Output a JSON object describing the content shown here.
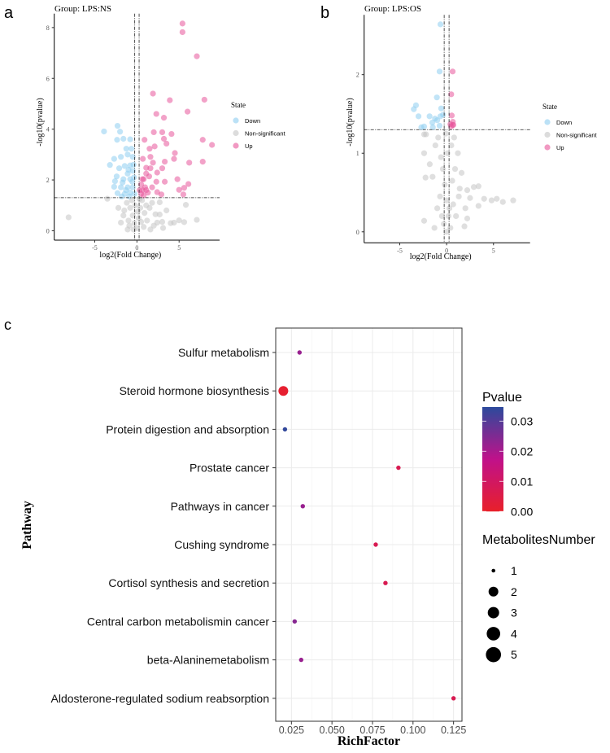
{
  "chart_data": [
    {
      "type": "scatter",
      "panel_label": "a",
      "title": "Group: LPS:NS",
      "xlabel": "log2(Fold Change)",
      "ylabel": "-log10(pvalue)",
      "xlim": [
        -9.8,
        9.8
      ],
      "ylim": [
        -0.37,
        8.55
      ],
      "xticks": [
        -5,
        0,
        5
      ],
      "yticks": [
        0,
        2,
        4,
        6,
        8
      ],
      "thresholds": {
        "x": [
          -0.26,
          0.26
        ],
        "y": 1.3
      },
      "legend": {
        "title": "State",
        "position": "right",
        "entries": [
          "Down",
          "Non-significant",
          "Up"
        ]
      },
      "colors": {
        "Down": "#8ecdf0",
        "Non-significant": "#c4c4c4",
        "Up": "#e8559a"
      },
      "series": [
        {
          "name": "Down",
          "points": [
            [
              -3.9,
              3.91
            ],
            [
              -2.3,
              4.13
            ],
            [
              -2.0,
              3.9
            ],
            [
              -2.35,
              3.58
            ],
            [
              -1.6,
              3.62
            ],
            [
              -0.8,
              3.6
            ],
            [
              -1.26,
              3.23
            ],
            [
              -0.65,
              3.23
            ],
            [
              -2.7,
              2.83
            ],
            [
              -3.2,
              2.59
            ],
            [
              -1.9,
              2.91
            ],
            [
              -1.1,
              3.0
            ],
            [
              -0.5,
              2.91
            ],
            [
              -2.1,
              2.46
            ],
            [
              -1.45,
              2.55
            ],
            [
              -0.8,
              2.57
            ],
            [
              -2.4,
              2.14
            ],
            [
              -1.1,
              2.25
            ],
            [
              -0.5,
              2.36
            ],
            [
              -2.6,
              1.95
            ],
            [
              -1.6,
              2.03
            ],
            [
              -0.8,
              2.03
            ],
            [
              -2.7,
              1.73
            ],
            [
              -1.9,
              1.71
            ],
            [
              -1.1,
              1.71
            ],
            [
              -0.5,
              1.71
            ],
            [
              -2.3,
              1.48
            ],
            [
              -1.45,
              1.45
            ],
            [
              -0.8,
              1.5
            ],
            [
              -0.3,
              1.45
            ],
            [
              -1.3,
              1.6
            ],
            [
              -0.55,
              1.93
            ],
            [
              -1.0,
              2.4
            ],
            [
              -0.4,
              2.6
            ],
            [
              -1.7,
              1.9
            ],
            [
              -0.35,
              2.1
            ],
            [
              -0.9,
              1.35
            ],
            [
              -1.8,
              1.35
            ]
          ]
        },
        {
          "name": "Non-significant",
          "points": [
            [
              -8.1,
              0.53
            ],
            [
              -3.5,
              1.26
            ],
            [
              5.8,
              1.02
            ],
            [
              7.1,
              0.43
            ],
            [
              2.7,
              1.12
            ],
            [
              2.7,
              0.64
            ],
            [
              4.4,
              0.32
            ],
            [
              5.0,
              0.41
            ],
            [
              5.6,
              0.34
            ],
            [
              3.1,
              0.11
            ],
            [
              2.4,
              0.32
            ],
            [
              -1.9,
              0.32
            ],
            [
              -1.1,
              0.05
            ],
            [
              -1.5,
              0.8
            ],
            [
              -1.2,
              1.1
            ],
            [
              -0.8,
              0.9
            ],
            [
              -0.5,
              0.6
            ],
            [
              -0.3,
              0.3
            ],
            [
              0,
              0.1
            ],
            [
              0.2,
              0.5
            ],
            [
              0.4,
              0.9
            ],
            [
              0.6,
              1.2
            ],
            [
              0.9,
              0.7
            ],
            [
              1.2,
              0.4
            ],
            [
              1.5,
              0.9
            ],
            [
              -0.6,
              1.2
            ],
            [
              -1.0,
              0.4
            ],
            [
              0.8,
              0.15
            ],
            [
              1.8,
              1.1
            ],
            [
              2.0,
              0.2
            ],
            [
              -0.2,
              1.0
            ],
            [
              0.1,
              0.75
            ],
            [
              -0.4,
              0.05
            ],
            [
              1.1,
              1.0
            ],
            [
              -2.2,
              0.9
            ],
            [
              3.5,
              0.8
            ],
            [
              1.6,
              0.05
            ],
            [
              2.2,
              0.65
            ],
            [
              -0.9,
              0.2
            ],
            [
              0.5,
              0.35
            ],
            [
              3.0,
              0.35
            ],
            [
              4.0,
              0.3
            ],
            [
              -1.6,
              0.6
            ],
            [
              0.3,
              1.25
            ]
          ]
        },
        {
          "name": "Up",
          "points": [
            [
              5.4,
              8.16
            ],
            [
              5.4,
              7.82
            ],
            [
              7.1,
              6.87
            ],
            [
              1.9,
              5.4
            ],
            [
              3.9,
              5.14
            ],
            [
              8.0,
              5.16
            ],
            [
              6.0,
              4.69
            ],
            [
              2.3,
              4.6
            ],
            [
              3.2,
              4.45
            ],
            [
              2.0,
              3.88
            ],
            [
              3.0,
              3.88
            ],
            [
              4.1,
              3.81
            ],
            [
              7.8,
              3.58
            ],
            [
              8.9,
              3.38
            ],
            [
              0.9,
              3.58
            ],
            [
              3.2,
              3.62
            ],
            [
              3.5,
              3.43
            ],
            [
              2.1,
              3.32
            ],
            [
              1.5,
              3.23
            ],
            [
              4.5,
              3.06
            ],
            [
              1.6,
              2.91
            ],
            [
              4.4,
              2.83
            ],
            [
              3.3,
              2.72
            ],
            [
              6.2,
              2.68
            ],
            [
              7.8,
              2.72
            ],
            [
              0.7,
              2.83
            ],
            [
              1.1,
              2.48
            ],
            [
              3.0,
              2.46
            ],
            [
              2.4,
              2.29
            ],
            [
              0.8,
              2.03
            ],
            [
              4.8,
              2.03
            ],
            [
              2.3,
              1.93
            ],
            [
              3.3,
              1.93
            ],
            [
              6.1,
              1.84
            ],
            [
              5.6,
              1.69
            ],
            [
              5.0,
              1.61
            ],
            [
              5.5,
              1.43
            ],
            [
              2.9,
              1.43
            ],
            [
              2.4,
              1.52
            ],
            [
              0.5,
              1.82
            ],
            [
              0.65,
              1.6
            ],
            [
              0.97,
              1.71
            ],
            [
              1.3,
              1.5
            ],
            [
              0.5,
              1.45
            ],
            [
              0.8,
              1.39
            ],
            [
              1.45,
              2.14
            ],
            [
              1.1,
              2.25
            ],
            [
              1.8,
              1.71
            ],
            [
              0.32,
              1.6
            ],
            [
              1.1,
              1.6
            ],
            [
              0.65,
              2.03
            ],
            [
              1.6,
              2.46
            ],
            [
              1.9,
              2.68
            ]
          ]
        }
      ]
    },
    {
      "type": "scatter",
      "panel_label": "b",
      "title": "Group: LPS:OS",
      "xlabel": "log2(Fold Change)",
      "ylabel": "-log10(pvalue)",
      "xlim": [
        -8.8,
        8.9
      ],
      "ylim": [
        -0.14,
        2.76
      ],
      "xticks": [
        -5,
        0,
        5
      ],
      "yticks": [
        0,
        1,
        2
      ],
      "thresholds": {
        "x": [
          -0.26,
          0.26
        ],
        "y": 1.3
      },
      "legend": {
        "title": "State",
        "position": "right",
        "entries": [
          "Down",
          "Non-significant",
          "Up"
        ]
      },
      "colors": {
        "Down": "#8ecdf0",
        "Non-significant": "#c4c4c4",
        "Up": "#e8559a"
      },
      "series": [
        {
          "name": "Down",
          "points": [
            [
              -0.66,
              2.64
            ],
            [
              -0.75,
              2.04
            ],
            [
              -1.04,
              1.71
            ],
            [
              -3.27,
              1.61
            ],
            [
              -3.5,
              1.56
            ],
            [
              -0.58,
              1.57
            ],
            [
              -3.0,
              1.47
            ],
            [
              -1.82,
              1.47
            ],
            [
              -1.24,
              1.44
            ],
            [
              -1.0,
              1.42
            ],
            [
              -1.53,
              1.39
            ],
            [
              -0.66,
              1.47
            ],
            [
              -0.38,
              1.49
            ],
            [
              -2.7,
              1.33
            ],
            [
              -2.4,
              1.34
            ],
            [
              -1.47,
              1.33
            ],
            [
              -0.75,
              1.35
            ]
          ]
        },
        {
          "name": "Non-significant",
          "points": [
            [
              7.1,
              0.4
            ],
            [
              6.0,
              0.38
            ],
            [
              5.35,
              0.42
            ],
            [
              4.8,
              0.4
            ],
            [
              4.0,
              0.42
            ],
            [
              3.4,
              0.58
            ],
            [
              2.9,
              0.57
            ],
            [
              2.2,
              0.53
            ],
            [
              2.5,
              0.43
            ],
            [
              3.4,
              0.33
            ],
            [
              2.2,
              0.17
            ],
            [
              1.9,
              0.07
            ],
            [
              -2.4,
              0.14
            ],
            [
              -2.25,
              0.69
            ],
            [
              -2.4,
              1.0
            ],
            [
              -2.4,
              1.24
            ],
            [
              -2.2,
              1.24
            ],
            [
              -1.5,
              0.7
            ],
            [
              -1.8,
              0.86
            ],
            [
              -1.2,
              1.1
            ],
            [
              -0.9,
              1.2
            ],
            [
              -0.6,
              0.95
            ],
            [
              -0.4,
              0.8
            ],
            [
              -0.2,
              0.6
            ],
            [
              0,
              0.4
            ],
            [
              0.2,
              0.2
            ],
            [
              0.4,
              0.05
            ],
            [
              -0.3,
              0.1
            ],
            [
              0.1,
              1.0
            ],
            [
              0.5,
              1.1
            ],
            [
              0.8,
              1.2
            ],
            [
              1.2,
              1.0
            ],
            [
              0.9,
              0.8
            ],
            [
              0.6,
              0.65
            ],
            [
              1.4,
              0.55
            ],
            [
              -0.7,
              0.45
            ],
            [
              -1.0,
              0.3
            ],
            [
              0.3,
              0.3
            ],
            [
              1.0,
              0.2
            ],
            [
              1.6,
              0.75
            ],
            [
              -0.1,
              1.25
            ],
            [
              0.7,
              0.35
            ],
            [
              -0.5,
              0.2
            ],
            [
              1.3,
              0.45
            ],
            [
              2.0,
              0.3
            ],
            [
              -1.3,
              0.05
            ],
            [
              0.0,
              0.0
            ]
          ]
        },
        {
          "name": "Up",
          "points": [
            [
              0.64,
              2.04
            ],
            [
              0.49,
              1.75
            ],
            [
              0.55,
              1.48
            ],
            [
              0.66,
              1.4
            ],
            [
              0.4,
              1.37
            ],
            [
              0.64,
              1.36
            ],
            [
              0.49,
              1.34
            ],
            [
              0.72,
              1.36
            ]
          ]
        }
      ]
    },
    {
      "type": "scatter",
      "subtype": "bubble",
      "panel_label": "c",
      "xlabel": "RichFactor",
      "ylabel": "Pathway",
      "xlim": [
        0.0153,
        0.1302
      ],
      "xticks": [
        "0.025",
        "0.050",
        "0.075",
        "0.100",
        "0.125"
      ],
      "grid": true,
      "categories": [
        "Sulfur metabolism",
        "Steroid hormone biosynthesis",
        "Protein digestion and absorption",
        "Prostate cancer",
        "Pathways in cancer",
        "Cushing syndrome",
        "Cortisol synthesis and secretion",
        "Central carbon metabolismin cancer",
        "beta-Alaninemetabolism",
        "Aldosterone-regulated sodium reabsorption"
      ],
      "rich_factor": [
        0.03,
        0.02,
        0.021,
        0.091,
        0.032,
        0.077,
        0.083,
        0.027,
        0.031,
        0.125
      ],
      "pvalue": [
        0.022,
        0.001,
        0.034,
        0.007,
        0.022,
        0.007,
        0.007,
        0.024,
        0.022,
        0.007
      ],
      "metabolites_number": [
        1,
        2,
        1,
        1,
        1,
        1,
        1,
        1,
        1,
        1
      ],
      "color_legend": {
        "title": "Pvalue",
        "ticks": [
          "0.00",
          "0.01",
          "0.02",
          "0.03"
        ],
        "range": [
          0,
          0.0347
        ],
        "colors": [
          "#e8202a",
          "#c0118a",
          "#2c4a9c"
        ]
      },
      "size_legend": {
        "title": "MetabolitesNumber",
        "entries": [
          "1",
          "2",
          "3",
          "4",
          "5"
        ]
      }
    }
  ]
}
